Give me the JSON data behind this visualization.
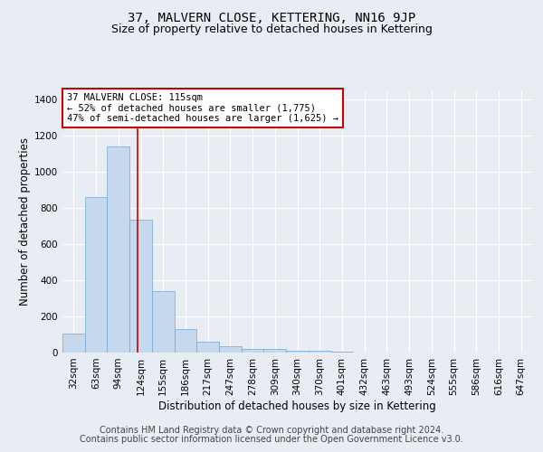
{
  "title": "37, MALVERN CLOSE, KETTERING, NN16 9JP",
  "subtitle": "Size of property relative to detached houses in Kettering",
  "xlabel": "Distribution of detached houses by size in Kettering",
  "ylabel": "Number of detached properties",
  "categories": [
    "32sqm",
    "63sqm",
    "94sqm",
    "124sqm",
    "155sqm",
    "186sqm",
    "217sqm",
    "247sqm",
    "278sqm",
    "309sqm",
    "340sqm",
    "370sqm",
    "401sqm",
    "432sqm",
    "463sqm",
    "493sqm",
    "524sqm",
    "555sqm",
    "586sqm",
    "616sqm",
    "647sqm"
  ],
  "values": [
    105,
    860,
    1140,
    735,
    340,
    130,
    62,
    35,
    22,
    18,
    10,
    8,
    5,
    0,
    0,
    0,
    0,
    0,
    0,
    0,
    0
  ],
  "bar_color": "#c5d8ee",
  "bar_edge_color": "#6fa8d0",
  "vline_x": 2.85,
  "vline_color": "#cc0000",
  "annotation_text": "37 MALVERN CLOSE: 115sqm\n← 52% of detached houses are smaller (1,775)\n47% of semi-detached houses are larger (1,625) →",
  "annotation_box_color": "#ffffff",
  "annotation_box_edge": "#cc0000",
  "ylim": [
    0,
    1450
  ],
  "yticks": [
    0,
    200,
    400,
    600,
    800,
    1000,
    1200,
    1400
  ],
  "bg_color": "#e8edf4",
  "plot_bg_color": "#e8edf4",
  "grid_color": "#ffffff",
  "footer_line1": "Contains HM Land Registry data © Crown copyright and database right 2024.",
  "footer_line2": "Contains public sector information licensed under the Open Government Licence v3.0.",
  "title_fontsize": 10,
  "subtitle_fontsize": 9,
  "xlabel_fontsize": 8.5,
  "ylabel_fontsize": 8.5,
  "tick_fontsize": 7.5,
  "annotation_fontsize": 7.5,
  "footer_fontsize": 7
}
